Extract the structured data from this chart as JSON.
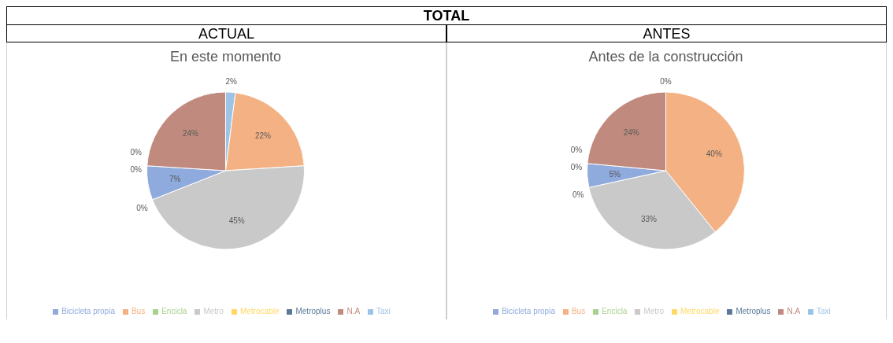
{
  "chart_data": [
    {
      "type": "pie",
      "title": "En este momento",
      "annotations": [
        "TOTAL",
        "ACTUAL"
      ],
      "categories": [
        "Taxi",
        "Bus",
        "Metro",
        "Metrocable",
        "Bicicleta propia",
        "Encicla",
        "Metroplus",
        "N.A"
      ],
      "values": [
        2,
        22,
        45,
        0,
        7,
        0,
        0,
        24
      ],
      "value_labels": [
        "2%",
        "22%",
        "45%",
        "0%",
        "7%",
        "0%",
        "0%",
        "24%"
      ],
      "colors": [
        "#9dc3e6",
        "#f4b183",
        "#c9c9c9",
        "#ffd966",
        "#8faadc",
        "#a9d18e",
        "#5b7a9a",
        "#c08a7e"
      ],
      "legend": "bottom"
    },
    {
      "type": "pie",
      "title": "Antes de la construcción",
      "annotations": [
        "ANTES"
      ],
      "categories": [
        "Taxi",
        "Bus",
        "Metro",
        "Metrocable",
        "Bicicleta propia",
        "Encicla",
        "Metroplus",
        "N.A"
      ],
      "values": [
        0,
        40,
        33,
        0,
        5,
        0,
        0,
        24
      ],
      "value_labels": [
        "0%",
        "40%",
        "33%",
        "0%",
        "5%",
        "0%",
        "0%",
        "24%"
      ],
      "colors": [
        "#9dc3e6",
        "#f4b183",
        "#c9c9c9",
        "#ffd966",
        "#8faadc",
        "#a9d18e",
        "#5b7a9a",
        "#c08a7e"
      ],
      "legend": "bottom"
    }
  ]
}
